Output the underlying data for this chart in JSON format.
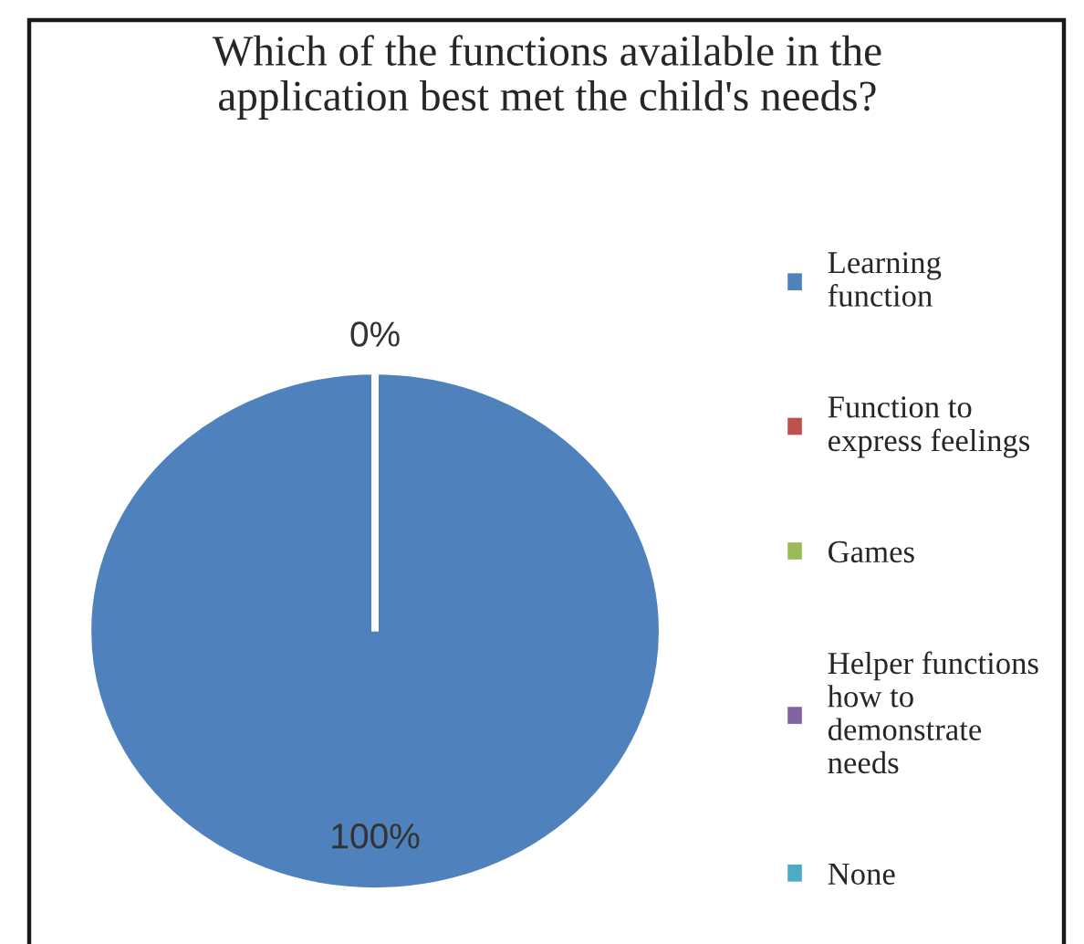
{
  "chart_data": {
    "type": "pie",
    "title": "Which of the functions available in the\napplication best met the child's needs?",
    "categories": [
      "Learning\nfunction",
      "Function to\nexpress feelings",
      "Games",
      "Helper functions\nhow to\ndemonstrate\nneeds",
      "None"
    ],
    "values": [
      100,
      0,
      0,
      0,
      0
    ],
    "colors": [
      "#4f81bd",
      "#c0504d",
      "#9bbb59",
      "#8064a2",
      "#4bacc6"
    ],
    "value_labels": [
      "100%",
      "0%",
      null,
      null,
      null
    ],
    "legend": "right"
  }
}
